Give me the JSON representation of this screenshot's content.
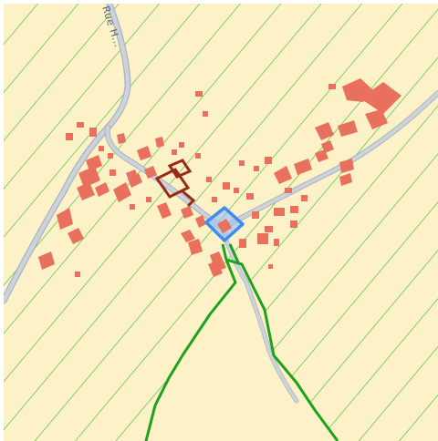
{
  "map": {
    "street_label": "Rue H...",
    "colors": {
      "background": "#fdf1c7",
      "hatch_line": "#35b535",
      "boundary": "#1ea11e",
      "road_fill": "#cdd3da",
      "road_outline": "#aab3bd",
      "building": "#e8705c",
      "building_dark": "#9a2a18",
      "highlight_outline": "#3d8cf0",
      "highlight_fill": "#9fc3ef"
    },
    "icons": {
      "highlighted_parcel": "selected-parcel-marker"
    }
  }
}
